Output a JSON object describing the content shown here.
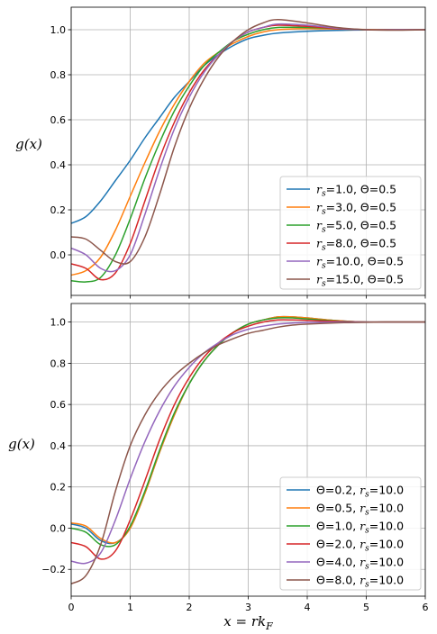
{
  "chart_data": [
    {
      "type": "line",
      "ylabel": "g(x)",
      "xlabel": "",
      "xlim": [
        0,
        6
      ],
      "ylim": [
        -0.18,
        1.1
      ],
      "xticks": [
        0,
        1,
        2,
        3,
        4,
        5,
        6
      ],
      "yticks": [
        0.0,
        0.2,
        0.4,
        0.6,
        0.8,
        1.0
      ],
      "ytick_labels": [
        "0.0",
        "0.2",
        "0.4",
        "0.6",
        "0.8",
        "1.0"
      ],
      "grid": true,
      "legend_position": "lower-right",
      "series": [
        {
          "rs": "1.0",
          "theta": "0.5",
          "color": "#1f77b4",
          "x": [
            0,
            0.25,
            0.5,
            0.75,
            1.0,
            1.25,
            1.5,
            1.75,
            2.0,
            2.25,
            2.5,
            2.75,
            3.0,
            3.25,
            3.5,
            4.0,
            4.5,
            5.0,
            5.5,
            6.0
          ],
          "y": [
            0.14,
            0.17,
            0.24,
            0.33,
            0.42,
            0.52,
            0.61,
            0.7,
            0.77,
            0.84,
            0.89,
            0.93,
            0.96,
            0.975,
            0.985,
            0.993,
            0.997,
            0.999,
            1.0,
            1.0
          ]
        },
        {
          "rs": "3.0",
          "theta": "0.5",
          "color": "#ff7f0e",
          "x": [
            0,
            0.25,
            0.5,
            0.75,
            1.0,
            1.25,
            1.5,
            1.75,
            2.0,
            2.25,
            2.5,
            2.75,
            3.0,
            3.25,
            3.5,
            4.0,
            4.5,
            5.0,
            5.5,
            6.0
          ],
          "y": [
            -0.09,
            -0.07,
            -0.01,
            0.11,
            0.26,
            0.41,
            0.55,
            0.67,
            0.77,
            0.85,
            0.9,
            0.94,
            0.97,
            0.99,
            1.0,
            1.005,
            1.003,
            1.001,
            1.0,
            1.0
          ]
        },
        {
          "rs": "5.0",
          "theta": "0.5",
          "color": "#2ca02c",
          "x": [
            0,
            0.25,
            0.5,
            0.75,
            1.0,
            1.25,
            1.5,
            1.75,
            2.0,
            2.25,
            2.5,
            2.75,
            3.0,
            3.25,
            3.5,
            4.0,
            4.5,
            5.0,
            5.5,
            6.0
          ],
          "y": [
            -0.115,
            -0.12,
            -0.1,
            0.0,
            0.16,
            0.34,
            0.5,
            0.64,
            0.75,
            0.84,
            0.9,
            0.95,
            0.98,
            1.0,
            1.01,
            1.01,
            1.005,
            1.0,
            1.0,
            1.0
          ]
        },
        {
          "rs": "8.0",
          "theta": "0.5",
          "color": "#d62728",
          "x": [
            0,
            0.25,
            0.5,
            0.75,
            1.0,
            1.25,
            1.5,
            1.75,
            2.0,
            2.25,
            2.5,
            2.75,
            3.0,
            3.25,
            3.5,
            4.0,
            4.5,
            5.0,
            5.5,
            6.0
          ],
          "y": [
            -0.04,
            -0.06,
            -0.11,
            -0.08,
            0.05,
            0.24,
            0.43,
            0.59,
            0.72,
            0.82,
            0.89,
            0.95,
            0.99,
            1.01,
            1.02,
            1.015,
            1.005,
            1.0,
            1.0,
            1.0
          ]
        },
        {
          "rs": "10.0",
          "theta": "0.5",
          "color": "#9467bd",
          "x": [
            0,
            0.25,
            0.5,
            0.75,
            1.0,
            1.25,
            1.5,
            1.75,
            2.0,
            2.25,
            2.5,
            2.75,
            3.0,
            3.25,
            3.5,
            4.0,
            4.5,
            5.0,
            5.5,
            6.0
          ],
          "y": [
            0.03,
            0.0,
            -0.06,
            -0.07,
            0.0,
            0.18,
            0.38,
            0.56,
            0.7,
            0.81,
            0.89,
            0.95,
            0.99,
            1.01,
            1.025,
            1.02,
            1.007,
            1.0,
            1.0,
            1.0
          ]
        },
        {
          "rs": "15.0",
          "theta": "0.5",
          "color": "#8c564b",
          "x": [
            0,
            0.25,
            0.5,
            0.75,
            1.0,
            1.25,
            1.5,
            1.75,
            2.0,
            2.25,
            2.5,
            2.75,
            3.0,
            3.25,
            3.5,
            4.0,
            4.5,
            5.0,
            5.5,
            6.0
          ],
          "y": [
            0.08,
            0.07,
            0.02,
            -0.03,
            -0.03,
            0.08,
            0.27,
            0.48,
            0.65,
            0.78,
            0.88,
            0.95,
            1.0,
            1.03,
            1.045,
            1.03,
            1.01,
            1.0,
            0.998,
            1.0
          ]
        }
      ]
    },
    {
      "type": "line",
      "ylabel": "g(x)",
      "xlabel": "x = rk_F",
      "xlim": [
        0,
        6
      ],
      "ylim": [
        -0.33,
        1.09
      ],
      "xticks": [
        0,
        1,
        2,
        3,
        4,
        5,
        6
      ],
      "yticks": [
        -0.2,
        0.0,
        0.2,
        0.4,
        0.6,
        0.8,
        1.0
      ],
      "ytick_labels": [
        "−0.2",
        "0.0",
        "0.2",
        "0.4",
        "0.6",
        "0.8",
        "1.0"
      ],
      "grid": true,
      "legend_position": "lower-right",
      "series": [
        {
          "theta": "0.2",
          "rs": "10.0",
          "color": "#1f77b4",
          "x": [
            0,
            0.25,
            0.5,
            0.75,
            1.0,
            1.25,
            1.5,
            1.75,
            2.0,
            2.25,
            2.5,
            2.75,
            3.0,
            3.25,
            3.5,
            3.75,
            4.0,
            4.5,
            5.0,
            5.5,
            6.0
          ],
          "y": [
            0.02,
            0.0,
            -0.06,
            -0.07,
            0.0,
            0.17,
            0.37,
            0.55,
            0.7,
            0.81,
            0.89,
            0.95,
            0.99,
            1.01,
            1.025,
            1.025,
            1.02,
            1.007,
            1.0,
            1.0,
            1.0
          ]
        },
        {
          "theta": "0.5",
          "rs": "10.0",
          "color": "#ff7f0e",
          "x": [
            0,
            0.25,
            0.5,
            0.75,
            1.0,
            1.25,
            1.5,
            1.75,
            2.0,
            2.25,
            2.5,
            2.75,
            3.0,
            3.25,
            3.5,
            3.75,
            4.0,
            4.5,
            5.0,
            5.5,
            6.0
          ],
          "y": [
            0.025,
            0.01,
            -0.05,
            -0.07,
            0.0,
            0.17,
            0.37,
            0.55,
            0.7,
            0.81,
            0.89,
            0.95,
            0.99,
            1.01,
            1.025,
            1.025,
            1.02,
            1.007,
            1.0,
            1.0,
            1.0
          ]
        },
        {
          "theta": "1.0",
          "rs": "10.0",
          "color": "#2ca02c",
          "x": [
            0,
            0.25,
            0.5,
            0.75,
            1.0,
            1.25,
            1.5,
            1.75,
            2.0,
            2.25,
            2.5,
            2.75,
            3.0,
            3.25,
            3.5,
            3.75,
            4.0,
            4.5,
            5.0,
            5.5,
            6.0
          ],
          "y": [
            0.0,
            -0.02,
            -0.08,
            -0.08,
            0.01,
            0.18,
            0.38,
            0.56,
            0.7,
            0.81,
            0.89,
            0.95,
            0.99,
            1.01,
            1.02,
            1.02,
            1.015,
            1.005,
            1.0,
            1.0,
            1.0
          ]
        },
        {
          "theta": "2.0",
          "rs": "10.0",
          "color": "#d62728",
          "x": [
            0,
            0.25,
            0.5,
            0.75,
            1.0,
            1.25,
            1.5,
            1.75,
            2.0,
            2.25,
            2.5,
            2.75,
            3.0,
            3.25,
            3.5,
            3.75,
            4.0,
            4.5,
            5.0,
            5.5,
            6.0
          ],
          "y": [
            -0.07,
            -0.09,
            -0.15,
            -0.11,
            0.04,
            0.23,
            0.43,
            0.6,
            0.73,
            0.83,
            0.9,
            0.95,
            0.98,
            1.0,
            1.01,
            1.01,
            1.008,
            1.003,
            1.0,
            1.0,
            1.0
          ]
        },
        {
          "theta": "4.0",
          "rs": "10.0",
          "color": "#9467bd",
          "x": [
            0,
            0.25,
            0.5,
            0.75,
            1.0,
            1.25,
            1.5,
            1.75,
            2.0,
            2.25,
            2.5,
            2.75,
            3.0,
            3.25,
            3.5,
            3.75,
            4.0,
            4.5,
            5.0,
            5.5,
            6.0
          ],
          "y": [
            -0.16,
            -0.17,
            -0.12,
            0.04,
            0.24,
            0.42,
            0.57,
            0.69,
            0.78,
            0.85,
            0.9,
            0.94,
            0.965,
            0.98,
            0.99,
            0.995,
            0.998,
            1.0,
            1.0,
            1.0,
            1.0
          ]
        },
        {
          "theta": "8.0",
          "rs": "10.0",
          "color": "#8c564b",
          "x": [
            0,
            0.25,
            0.5,
            0.75,
            1.0,
            1.25,
            1.5,
            1.75,
            2.0,
            2.25,
            2.5,
            2.75,
            3.0,
            3.25,
            3.5,
            3.75,
            4.0,
            4.5,
            5.0,
            5.5,
            6.0
          ],
          "y": [
            -0.27,
            -0.23,
            -0.08,
            0.18,
            0.4,
            0.55,
            0.66,
            0.74,
            0.8,
            0.85,
            0.89,
            0.92,
            0.945,
            0.96,
            0.975,
            0.985,
            0.99,
            0.996,
            0.999,
            1.0,
            1.0
          ]
        }
      ]
    }
  ]
}
